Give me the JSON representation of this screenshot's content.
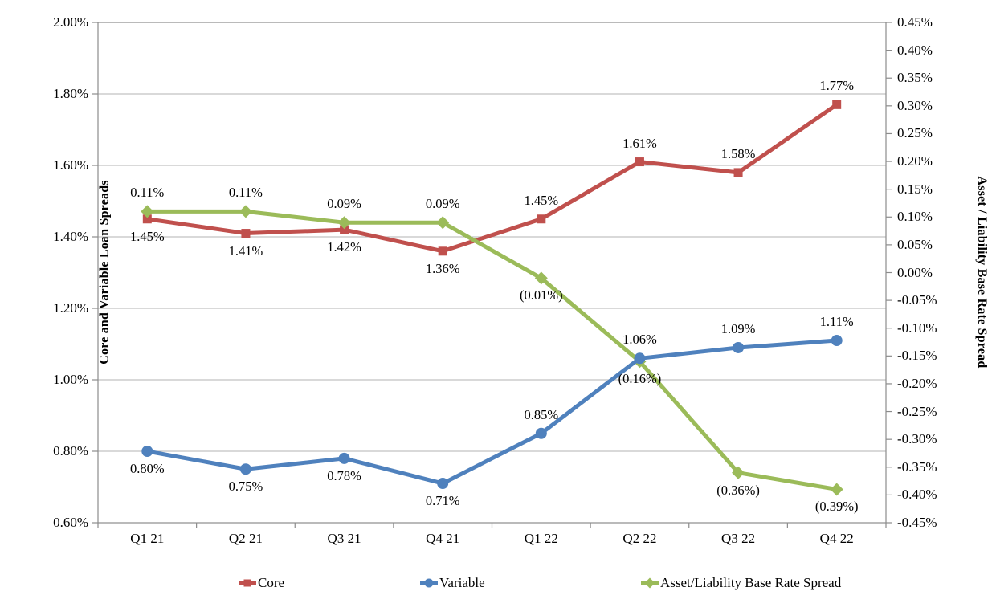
{
  "chart_data": {
    "type": "line",
    "categories": [
      "Q1 21",
      "Q2 21",
      "Q3 21",
      "Q4 21",
      "Q1 22",
      "Q2 22",
      "Q3 22",
      "Q4 22"
    ],
    "left_axis": {
      "title": "Core and Variable Loan Spreads",
      "min": 0.6,
      "max": 2.0,
      "tick_step": 0.2,
      "tick_labels": [
        "2.00%",
        "1.80%",
        "1.60%",
        "1.40%",
        "1.20%",
        "1.00%",
        "0.80%",
        "0.60%"
      ]
    },
    "right_axis": {
      "title": "Asset / Liability Base Rate Spread",
      "min": -0.45,
      "max": 0.45,
      "tick_step": 0.05,
      "tick_labels": [
        "0.45%",
        "0.40%",
        "0.35%",
        "0.30%",
        "0.25%",
        "0.20%",
        "0.15%",
        "0.10%",
        "0.05%",
        "0.00%",
        "-0.05%",
        "-0.10%",
        "-0.15%",
        "-0.20%",
        "-0.25%",
        "-0.30%",
        "-0.35%",
        "-0.40%",
        "-0.45%"
      ]
    },
    "series": [
      {
        "name": "Core",
        "axis": "left",
        "color": "#C0504D",
        "marker": "square",
        "values": [
          1.45,
          1.41,
          1.42,
          1.36,
          1.45,
          1.61,
          1.58,
          1.77
        ],
        "labels": [
          "1.45%",
          "1.41%",
          "1.42%",
          "1.36%",
          "1.45%",
          "1.61%",
          "1.58%",
          "1.77%"
        ],
        "label_pos": [
          "below",
          "below",
          "below",
          "below",
          "above",
          "above",
          "above",
          "above"
        ]
      },
      {
        "name": "Variable",
        "axis": "left",
        "color": "#4F81BD",
        "marker": "circle",
        "values": [
          0.8,
          0.75,
          0.78,
          0.71,
          0.85,
          1.06,
          1.09,
          1.11
        ],
        "labels": [
          "0.80%",
          "0.75%",
          "0.78%",
          "0.71%",
          "0.85%",
          "1.06%",
          "1.09%",
          "1.11%"
        ],
        "label_pos": [
          "below",
          "below",
          "below",
          "below",
          "above",
          "above",
          "above",
          "above"
        ]
      },
      {
        "name": "Asset/Liability Base Rate Spread",
        "axis": "right",
        "color": "#9BBB59",
        "marker": "diamond",
        "values": [
          0.11,
          0.11,
          0.09,
          0.09,
          -0.01,
          -0.16,
          -0.36,
          -0.39
        ],
        "labels": [
          "0.11%",
          "0.11%",
          "0.09%",
          "0.09%",
          "(0.01%)",
          "(0.16%)",
          "(0.36%)",
          "(0.39%)"
        ],
        "label_pos": [
          "above",
          "above",
          "above",
          "above",
          "below",
          "below",
          "below",
          "below"
        ]
      }
    ],
    "legend": {
      "position": "bottom",
      "items": [
        "Core",
        "Variable",
        "Asset/Liability Base Rate Spread"
      ]
    },
    "grid": "horizontal-major",
    "colors": {
      "gridline": "#B3B3B3",
      "axis_line": "#8C8C8C",
      "text": "#000000",
      "background": "#FFFFFF"
    }
  }
}
